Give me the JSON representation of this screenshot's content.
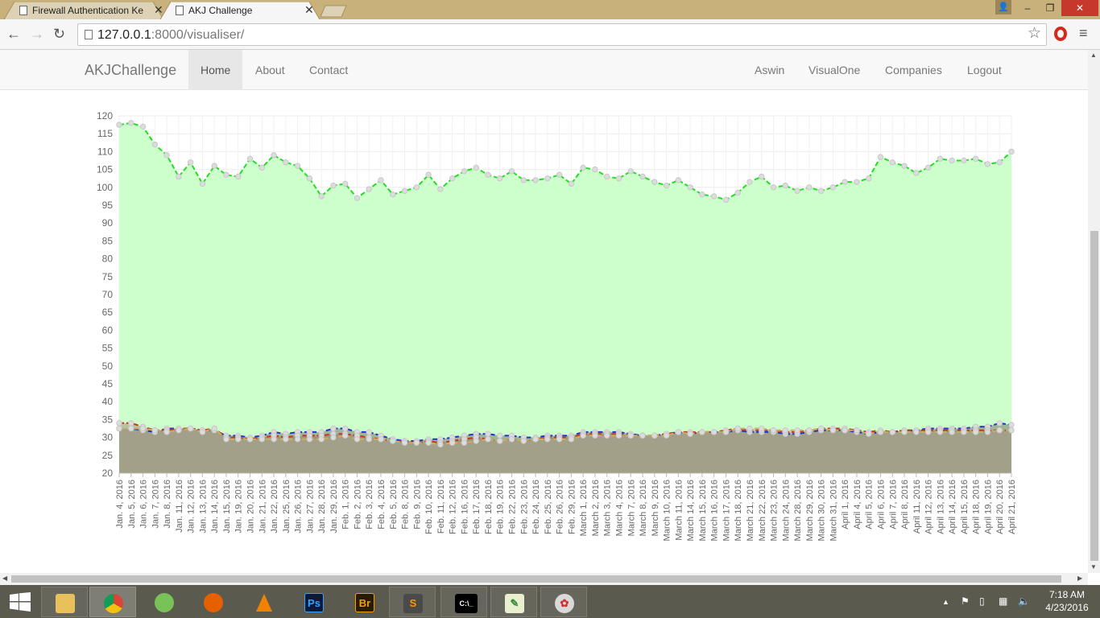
{
  "browser": {
    "tabs": [
      {
        "title": "Firewall Authentication Ke",
        "active": false
      },
      {
        "title": "AKJ Challenge",
        "active": true
      }
    ],
    "url_host": "127.0.0.1",
    "url_port": ":8000",
    "url_path": "/visualiser/"
  },
  "navbar": {
    "brand": "AKJChallenge",
    "left_links": [
      "Home",
      "About",
      "Contact"
    ],
    "right_links": [
      "Aswin",
      "VisualOne",
      "Companies",
      "Logout"
    ],
    "active": "Home"
  },
  "chart_data": {
    "type": "area",
    "title": "",
    "xlabel": "",
    "ylabel": "",
    "ylim": [
      20,
      120
    ],
    "yticks": [
      20,
      25,
      30,
      35,
      40,
      45,
      50,
      55,
      60,
      65,
      70,
      75,
      80,
      85,
      90,
      95,
      100,
      105,
      110,
      115,
      120
    ],
    "grid": true,
    "categories": [
      "Jan. 4, 2016",
      "Jan. 5, 2016",
      "Jan. 6, 2016",
      "Jan. 7, 2016",
      "Jan. 8, 2016",
      "Jan. 11, 2016",
      "Jan. 12, 2016",
      "Jan. 13, 2016",
      "Jan. 14, 2016",
      "Jan. 15, 2016",
      "Jan. 19, 2016",
      "Jan. 20, 2016",
      "Jan. 21, 2016",
      "Jan. 22, 2016",
      "Jan. 25, 2016",
      "Jan. 26, 2016",
      "Jan. 27, 2016",
      "Jan. 28, 2016",
      "Jan. 29, 2016",
      "Feb. 1, 2016",
      "Feb. 2, 2016",
      "Feb. 3, 2016",
      "Feb. 4, 2016",
      "Feb. 5, 2016",
      "Feb. 8, 2016",
      "Feb. 9, 2016",
      "Feb. 10, 2016",
      "Feb. 11, 2016",
      "Feb. 12, 2016",
      "Feb. 16, 2016",
      "Feb. 17, 2016",
      "Feb. 18, 2016",
      "Feb. 19, 2016",
      "Feb. 22, 2016",
      "Feb. 23, 2016",
      "Feb. 24, 2016",
      "Feb. 25, 2016",
      "Feb. 26, 2016",
      "Feb. 29, 2016",
      "March 1, 2016",
      "March 2, 2016",
      "March 3, 2016",
      "March 4, 2016",
      "March 7, 2016",
      "March 8, 2016",
      "March 9, 2016",
      "March 10, 2016",
      "March 11, 2016",
      "March 14, 2016",
      "March 15, 2016",
      "March 16, 2016",
      "March 17, 2016",
      "March 18, 2016",
      "March 21, 2016",
      "March 22, 2016",
      "March 23, 2016",
      "March 24, 2016",
      "March 28, 2016",
      "March 29, 2016",
      "March 30, 2016",
      "March 31, 2016",
      "April 1, 2016",
      "April 4, 2016",
      "April 5, 2016",
      "April 6, 2016",
      "April 7, 2016",
      "April 8, 2016",
      "April 11, 2016",
      "April 12, 2016",
      "April 13, 2016",
      "April 14, 2016",
      "April 15, 2016",
      "April 18, 2016",
      "April 19, 2016",
      "April 20, 2016",
      "April 21, 2016"
    ],
    "series": [
      {
        "color": "#22dd22",
        "fill": "#ccffcc",
        "values": [
          117.5,
          118,
          117,
          112,
          109,
          103,
          107,
          101,
          106,
          103.5,
          103,
          108,
          105.5,
          109,
          107,
          106,
          102.5,
          97.5,
          100.5,
          101,
          97,
          99.5,
          102,
          98,
          99,
          100,
          103.5,
          99.5,
          102.5,
          104.5,
          105.5,
          103.5,
          102.5,
          104.5,
          102,
          102,
          102.5,
          103.5,
          101,
          105.5,
          105,
          103,
          102.5,
          104.5,
          103,
          101.5,
          100.5,
          102,
          100,
          98,
          97.5,
          96.5,
          98.5,
          101.5,
          103,
          100,
          100.5,
          99,
          100,
          99,
          100,
          101.5,
          101.5,
          102.5,
          108.5,
          107,
          106,
          104,
          105.5,
          108,
          107.5,
          107.5,
          108,
          106.5,
          107,
          110
        ]
      },
      {
        "color": "#2233cc",
        "fill": "rgba(120,120,110,0.55)",
        "values": [
          32.5,
          32.5,
          32,
          31.5,
          32.5,
          32.5,
          32.5,
          32,
          32,
          30.5,
          30.5,
          30,
          30.5,
          31.5,
          31,
          31.5,
          31.5,
          31.5,
          32.5,
          32.5,
          31.5,
          31.5,
          30.5,
          29.5,
          29,
          29,
          29.5,
          29.5,
          30,
          30.5,
          31,
          31,
          30.5,
          30.5,
          30,
          30,
          30.5,
          30.5,
          30.5,
          31.5,
          31.5,
          31.5,
          31.5,
          31,
          30.5,
          30.5,
          31,
          31.5,
          31,
          31.5,
          31.5,
          31.5,
          32,
          31.5,
          31.5,
          31.5,
          31,
          31,
          31.5,
          32,
          32,
          32,
          31.5,
          31,
          31.5,
          31.5,
          32,
          32,
          32.5,
          32.5,
          32.5,
          32.5,
          33,
          33,
          34,
          33.5
        ]
      },
      {
        "color": "#cc3322",
        "fill": "rgba(150,110,90,0.4)",
        "values": [
          34,
          34,
          33,
          32,
          32,
          32.5,
          32.5,
          32,
          32.5,
          30,
          30,
          29.5,
          30,
          30.5,
          30,
          30.5,
          30.5,
          30.5,
          31,
          31,
          30.5,
          30,
          29.5,
          29,
          29,
          28.5,
          29,
          28.5,
          29,
          29.5,
          30,
          29.5,
          29,
          29.5,
          29,
          29.5,
          30,
          30,
          30,
          31,
          31,
          31,
          31,
          30.5,
          30.5,
          30.5,
          31,
          31.5,
          31.5,
          31.5,
          31.5,
          32,
          32.5,
          32,
          32,
          32,
          31.5,
          31.5,
          32,
          32.5,
          32.5,
          32.5,
          32,
          31.5,
          32,
          31.5,
          32,
          32,
          32,
          32,
          32,
          32,
          32,
          32,
          32,
          32
        ]
      },
      {
        "color": "#c8b060",
        "fill": "rgba(170,170,150,0.45)",
        "values": [
          32.5,
          32.5,
          32.5,
          32,
          31.5,
          32,
          32.5,
          31.5,
          32.5,
          29.5,
          29.5,
          29.5,
          29.5,
          29.5,
          29.5,
          29.5,
          29.5,
          29.5,
          30,
          30.5,
          29.5,
          29.5,
          29.5,
          29,
          28.5,
          28.5,
          28.5,
          28,
          28.5,
          28.5,
          29,
          29.5,
          29,
          29.5,
          29,
          29.5,
          29.5,
          29.5,
          29.5,
          30.5,
          30.5,
          30.5,
          30.5,
          30.5,
          30.5,
          30.5,
          30.5,
          31.5,
          31,
          31.5,
          31.5,
          31.5,
          32.5,
          32.5,
          32.5,
          32,
          32,
          32,
          32,
          32.5,
          32,
          32,
          32,
          31,
          31.5,
          31.5,
          31.5,
          31.5,
          31.5,
          31.5,
          31.5,
          31.5,
          31.5,
          31.5,
          32,
          32
        ]
      }
    ]
  },
  "taskbar": {
    "apps": [
      "File Explorer",
      "Chrome",
      "Android Studio",
      "Firefox",
      "VLC",
      "Ps",
      "Br",
      "Sublime Text",
      "Command Prompt",
      "Notepad++",
      "Paint"
    ],
    "time": "7:18 AM",
    "date": "4/23/2016"
  }
}
